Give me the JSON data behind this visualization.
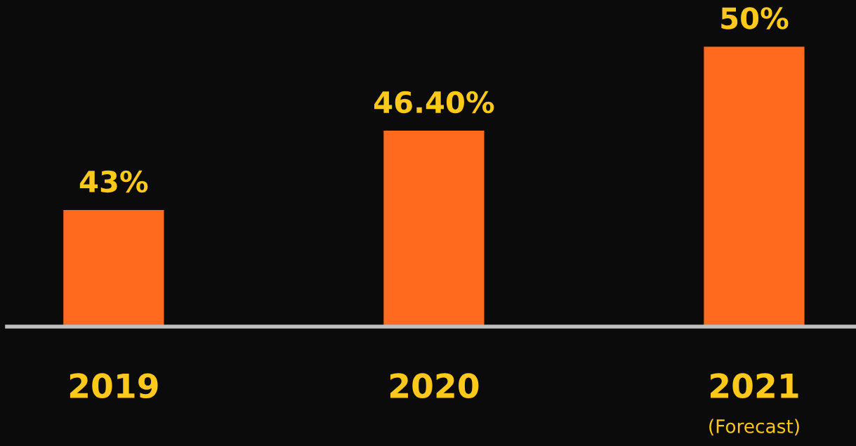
{
  "chart_data": {
    "type": "bar",
    "categories": [
      "2019",
      "2020",
      "2021\n(Forecast)"
    ],
    "values": [
      43,
      46.4,
      50
    ],
    "value_labels": [
      "43%",
      "46.40%",
      "50%"
    ],
    "color": "#ff6a1f",
    "ylim": [
      38,
      52
    ],
    "grid": false,
    "legend": false,
    "tick_labels": "x"
  }
}
